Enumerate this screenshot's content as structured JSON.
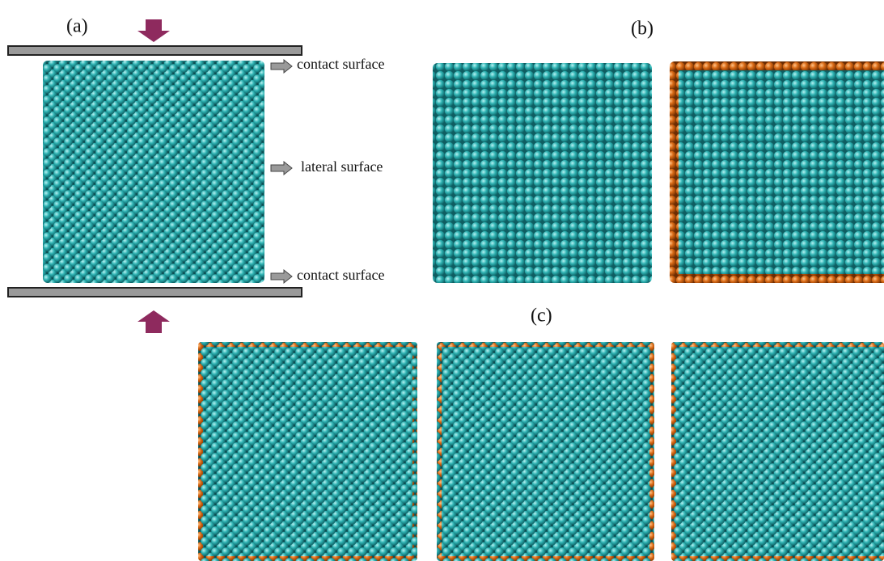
{
  "panels": {
    "a": {
      "label": "(a)",
      "annotations": [
        "contact surface",
        "lateral surface",
        "contact surface"
      ]
    },
    "b": {
      "label": "(b)"
    },
    "c": {
      "label": "(c)"
    }
  }
}
